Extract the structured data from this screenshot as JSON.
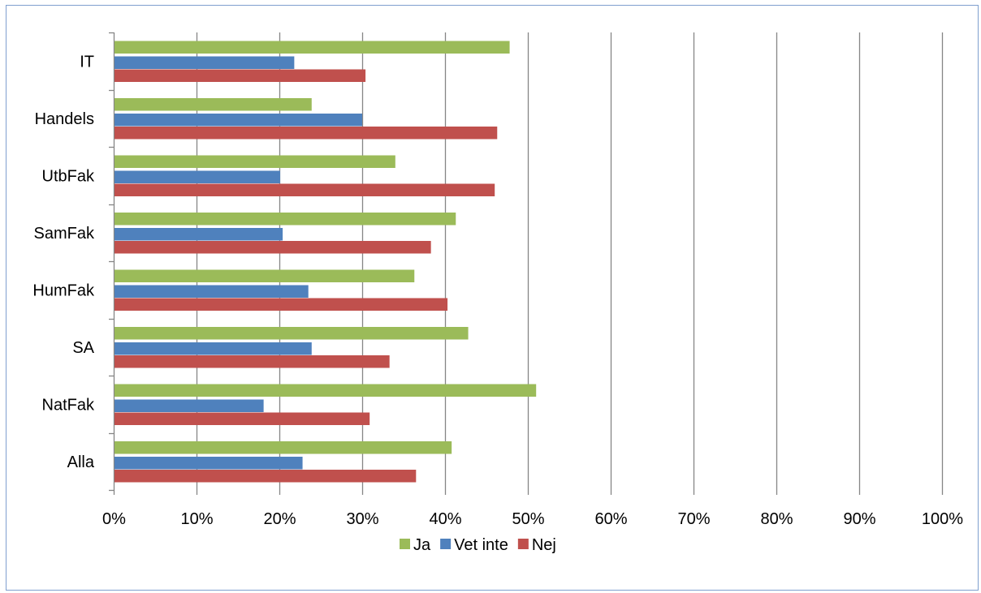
{
  "chart_data": {
    "type": "bar",
    "orientation": "horizontal",
    "categories": [
      "IT",
      "Handels",
      "UtbFak",
      "SamFak",
      "HumFak",
      "SA",
      "NatFak",
      "Alla"
    ],
    "series": [
      {
        "name": "Ja",
        "color": "#9bbb59",
        "values": [
          47.8,
          23.9,
          34.0,
          41.3,
          36.3,
          42.8,
          51.0,
          40.8
        ]
      },
      {
        "name": "Vet inte",
        "color": "#4f81bd",
        "values": [
          21.8,
          30.0,
          20.1,
          20.4,
          23.5,
          23.9,
          18.1,
          22.8
        ]
      },
      {
        "name": "Nej",
        "color": "#c0504d",
        "values": [
          30.4,
          46.3,
          46.0,
          38.3,
          40.3,
          33.3,
          30.9,
          36.5
        ]
      }
    ],
    "xlim": [
      0,
      100
    ],
    "x_ticks": [
      "0%",
      "10%",
      "20%",
      "30%",
      "40%",
      "50%",
      "60%",
      "70%",
      "80%",
      "90%",
      "100%"
    ],
    "grid": "vertical",
    "legend_position": "bottom",
    "title": "",
    "xlabel": "",
    "ylabel": ""
  }
}
